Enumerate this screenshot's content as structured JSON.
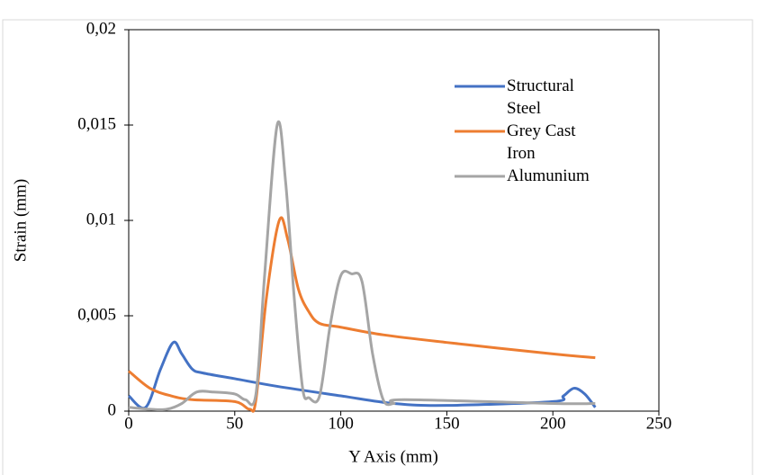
{
  "chart_data": {
    "type": "line",
    "x_label": "Y Axis (mm)",
    "y_label": "Strain (mm)",
    "xlim": [
      0,
      250
    ],
    "xticks": [
      0,
      50,
      100,
      150,
      200,
      250
    ],
    "ylim": [
      0,
      0.02
    ],
    "yticks": [
      0,
      {
        "value": 0.005,
        "label": "0,005"
      },
      {
        "value": 0.01,
        "label": "0,01"
      },
      {
        "value": 0.015,
        "label": "0,015"
      },
      {
        "value": 0.02,
        "label": "0,02"
      }
    ],
    "grid": false,
    "legend": "top-right",
    "series": [
      {
        "name": "Structural Steel",
        "color": "#4472c4",
        "x": [
          0,
          8,
          15,
          21,
          25,
          30,
          35,
          50,
          70,
          100,
          125,
          150,
          200,
          205,
          210,
          215,
          220
        ],
        "values": [
          0.0008,
          0.0002,
          0.0022,
          0.0036,
          0.003,
          0.0022,
          0.002,
          0.0017,
          0.0013,
          0.0008,
          0.0004,
          0.0003,
          0.0005,
          0.0008,
          0.0012,
          0.0009,
          0.0002
        ]
      },
      {
        "name": "Grey Cast Iron",
        "color": "#ed7d31",
        "x": [
          0,
          10,
          20,
          30,
          50,
          57,
          60,
          65,
          71,
          75,
          80,
          85,
          90,
          100,
          120,
          150,
          200,
          220
        ],
        "values": [
          0.0021,
          0.0012,
          0.0008,
          0.0006,
          0.0005,
          0.0001,
          0.0006,
          0.006,
          0.01,
          0.009,
          0.0064,
          0.0052,
          0.0046,
          0.0044,
          0.004,
          0.0036,
          0.003,
          0.0028
        ]
      },
      {
        "name": "Alumunium",
        "color": "#a5a5a5",
        "x": [
          0,
          10,
          18,
          25,
          32,
          40,
          50,
          55,
          60,
          64,
          70,
          74,
          78,
          82,
          85,
          90,
          95,
          100,
          105,
          110,
          115,
          120,
          125,
          130,
          200,
          220
        ],
        "values": [
          0.0002,
          0.0001,
          0.0001,
          0.0004,
          0.001,
          0.001,
          0.0009,
          0.0006,
          0.0009,
          0.007,
          0.015,
          0.012,
          0.006,
          0.0012,
          0.0007,
          0.0008,
          0.0045,
          0.0071,
          0.0072,
          0.0068,
          0.003,
          0.0006,
          0.0004,
          0.0006,
          0.0004,
          0.0004
        ]
      }
    ]
  }
}
